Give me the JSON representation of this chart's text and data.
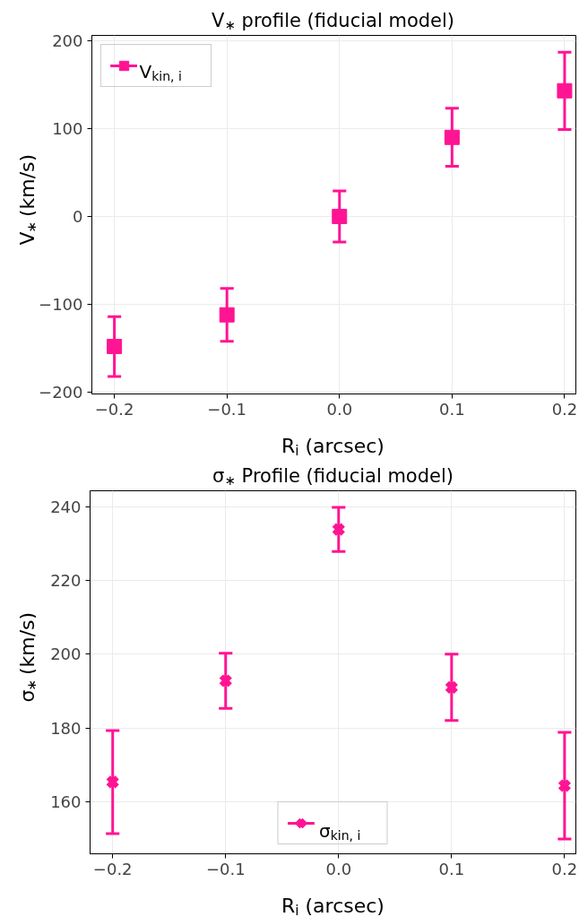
{
  "chart_data": [
    {
      "type": "scatter",
      "title": "V$_{∗}$ profile (fiducial model)",
      "xlabel": "R$_{i}$ (arcsec)",
      "ylabel": "V$_{∗}$ (km/s)",
      "x": [
        -0.2,
        -0.1,
        0.0,
        0.1,
        0.2
      ],
      "series": [
        {
          "name": "V$_{kin, i}$",
          "color": "#ff1493",
          "values": [
            -148,
            -112,
            0,
            90,
            143
          ],
          "errors": [
            34,
            30,
            29,
            33,
            44
          ]
        }
      ],
      "marker": "square",
      "grid": true,
      "legend": "top left",
      "xlim": [
        -0.22,
        0.21
      ],
      "ylim": [
        -202,
        206
      ],
      "xticks": [
        {
          "value": -0.2,
          "label": "−0.2"
        },
        {
          "value": -0.1,
          "label": "−0.1"
        },
        {
          "value": 0.0,
          "label": "0.0"
        },
        {
          "value": 0.1,
          "label": "0.1"
        },
        {
          "value": 0.2,
          "label": "0.2"
        }
      ],
      "yticks": [
        {
          "value": -200,
          "label": "−200"
        },
        {
          "value": -100,
          "label": "−100"
        },
        0,
        100,
        200
      ]
    },
    {
      "type": "scatter",
      "title": "σ$_{∗}$ Profile (fiducial model)",
      "xlabel": "R$_{i}$ (arcsec)",
      "ylabel": "σ$_{∗}$ (km/s)",
      "x": [
        -0.2,
        -0.1,
        0.0,
        0.1,
        0.2
      ],
      "series": [
        {
          "name": "σ$_{kin, i}$",
          "color": "#ff1493",
          "values": [
            165.3,
            192.8,
            233.9,
            191,
            164.3
          ],
          "errors": [
            14,
            7.5,
            6,
            9,
            14.5
          ]
        }
      ],
      "marker": "cross",
      "grid": true,
      "legend": "bottom",
      "xlim": [
        -0.22,
        0.21
      ],
      "ylim": [
        145.8,
        244.4
      ],
      "xticks": [
        {
          "value": -0.2,
          "label": "−0.2"
        },
        {
          "value": -0.1,
          "label": "−0.1"
        },
        {
          "value": 0.0,
          "label": "0.0"
        },
        {
          "value": 0.1,
          "label": "0.1"
        },
        {
          "value": 0.2,
          "label": "0.2"
        }
      ],
      "yticks": [
        160,
        180,
        200,
        220,
        240
      ]
    }
  ]
}
